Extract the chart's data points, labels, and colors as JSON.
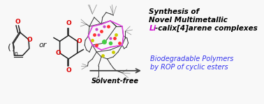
{
  "background_color": "#f8f8f8",
  "border_color": "#b0b0b0",
  "title_line1": "Synthesis of",
  "title_line2": "Novel Multimetallic",
  "title_li": "Li",
  "title_line3": "-calix[4]arene complexes",
  "subtitle_line1": "Biodegradable Polymers",
  "subtitle_line2": "by ROP of cyclic esters",
  "arrow_label": "Solvent-free",
  "or_text": "or",
  "title_color": "#000000",
  "li_color": "#cc00cc",
  "subtitle_color": "#3333ee",
  "arrow_color": "#444444",
  "red_color": "#dd0000",
  "structure_color": "#222222"
}
